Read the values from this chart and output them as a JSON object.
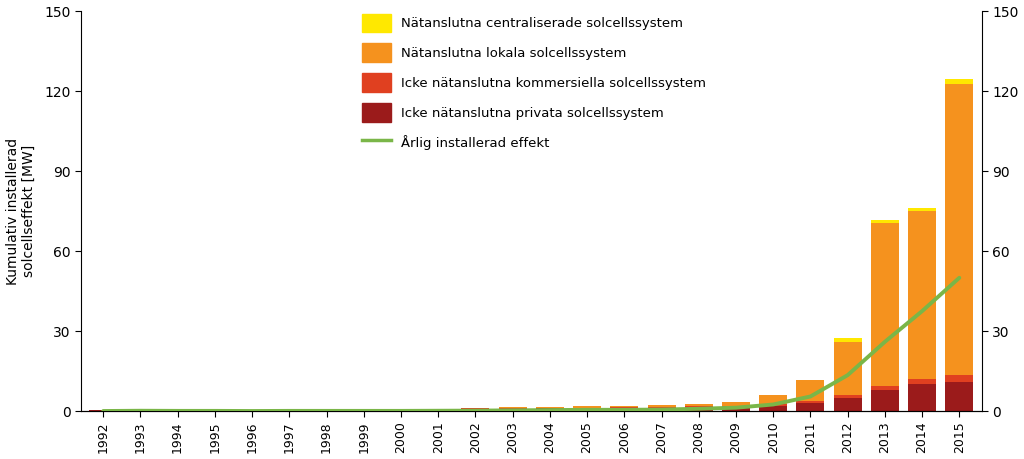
{
  "years": [
    1992,
    1993,
    1994,
    1995,
    1996,
    1997,
    1998,
    1999,
    2000,
    2001,
    2002,
    2003,
    2004,
    2005,
    2006,
    2007,
    2008,
    2009,
    2010,
    2011,
    2012,
    2013,
    2014,
    2015
  ],
  "dark_red": [
    0.3,
    0.4,
    0.5,
    0.5,
    0.5,
    0.5,
    0.5,
    0.6,
    0.6,
    0.7,
    0.8,
    0.9,
    1.0,
    1.1,
    1.2,
    1.3,
    1.5,
    1.7,
    2.0,
    3.0,
    5.0,
    8.0,
    10.0,
    11.0
  ],
  "orange_red": [
    0.0,
    0.1,
    0.1,
    0.1,
    0.1,
    0.1,
    0.1,
    0.1,
    0.1,
    0.1,
    0.2,
    0.2,
    0.2,
    0.2,
    0.3,
    0.3,
    0.3,
    0.4,
    0.5,
    0.8,
    1.0,
    1.5,
    2.0,
    2.5
  ],
  "orange": [
    0.0,
    0.0,
    0.0,
    0.0,
    0.0,
    0.0,
    0.0,
    0.0,
    0.0,
    0.1,
    0.2,
    0.3,
    0.4,
    0.5,
    0.6,
    0.7,
    1.0,
    1.5,
    3.5,
    8.0,
    20.0,
    61.0,
    63.0,
    109.0
  ],
  "yellow": [
    0.0,
    0.0,
    0.0,
    0.0,
    0.0,
    0.0,
    0.0,
    0.0,
    0.0,
    0.0,
    0.0,
    0.0,
    0.0,
    0.0,
    0.0,
    0.0,
    0.0,
    0.0,
    0.0,
    0.0,
    1.5,
    1.0,
    1.0,
    2.0
  ],
  "annual": [
    0.05,
    0.15,
    0.1,
    0.1,
    0.05,
    0.1,
    0.1,
    0.1,
    0.1,
    0.15,
    0.2,
    0.3,
    0.4,
    0.5,
    0.5,
    0.6,
    0.9,
    1.3,
    2.5,
    5.5,
    13.5,
    26.0,
    37.5,
    50.0
  ],
  "color_dark_red": "#9B1B1B",
  "color_orange_red": "#E04020",
  "color_orange": "#F5921E",
  "color_yellow": "#FFE800",
  "color_line": "#7AB648",
  "ylabel_left": "Kumulativ installerad\nsolcellseffekt [MW]",
  "ylim": [
    0,
    150
  ],
  "xlim_left": 1991.4,
  "xlim_right": 2015.6,
  "legend_labels": [
    "Nätanslutna centraliserade solcellssystem",
    "Nätanslutna lokala solcellssystem",
    "Icke nätanslutna kommersiella solcellssystem",
    "Icke nätanslutna privata solcellssystem",
    "Årlig installerad effekt"
  ],
  "yticks": [
    0,
    30,
    60,
    90,
    120,
    150
  ],
  "bar_width": 0.75
}
